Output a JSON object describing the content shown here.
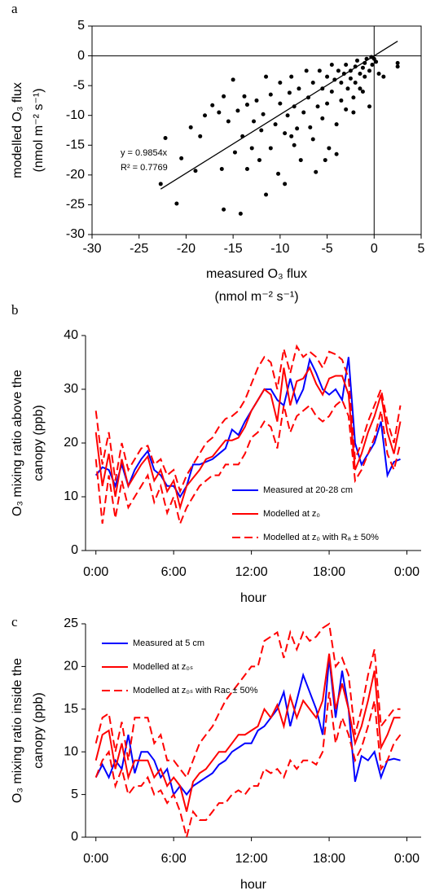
{
  "chart_data": [
    {
      "type": "scatter",
      "label": "a",
      "ylabel": [
        "modelled O₃ flux",
        "(nmol m⁻² s⁻¹)"
      ],
      "xlabel": [
        "measured O₃ flux",
        "(nmol m⁻² s⁻¹)"
      ],
      "xlim": [
        -30,
        5
      ],
      "ylim": [
        -30,
        5
      ],
      "xticks": [
        -30,
        -25,
        -20,
        -15,
        -10,
        -5,
        0,
        5
      ],
      "yticks": [
        -30,
        -25,
        -20,
        -15,
        -10,
        -5,
        0,
        5
      ],
      "color": "#000000",
      "x": [
        -22.7,
        -22.2,
        -21,
        -20.5,
        -19.5,
        -19,
        -18.5,
        -18,
        -17.2,
        -16.5,
        -16,
        -16.2,
        -16,
        -15.5,
        -15,
        -14.8,
        -14.5,
        -14.2,
        -14,
        -13.8,
        -13.5,
        -13.5,
        -13,
        -12.8,
        -12.5,
        -12.2,
        -12,
        -11.8,
        -11.5,
        -11.5,
        -11,
        -11,
        -10.5,
        -10.2,
        -10,
        -10,
        -9.5,
        -9.5,
        -9.2,
        -9,
        -8.8,
        -8.5,
        -8.5,
        -8.2,
        -8,
        -7.8,
        -7.5,
        -7.2,
        -7,
        -6.8,
        -6.5,
        -6.2,
        -6,
        -5.8,
        -5.5,
        -5.5,
        -5.2,
        -5,
        -5,
        -4.8,
        -4.5,
        -4.5,
        -4.2,
        -4,
        -3.8,
        -3.5,
        -3.5,
        -3.2,
        -3,
        -3,
        -2.8,
        -2.5,
        -2.5,
        -2.2,
        -2,
        -2,
        -1.8,
        -1.5,
        -1.5,
        -1.2,
        -1,
        -1,
        -0.8,
        -0.5,
        -0.5,
        -0.3,
        -0.2,
        0,
        0.2,
        0.5,
        1,
        2.5,
        2.5,
        -1.2,
        -6.5,
        -8.8,
        -4,
        -2.2
      ],
      "values": [
        -21.5,
        -13.8,
        -24.8,
        -17.2,
        -12,
        -19.3,
        -13.5,
        -10,
        -8.3,
        -9.5,
        -25.8,
        -19,
        -6.8,
        -11,
        -4,
        -16.2,
        -9.2,
        -26.5,
        -13.5,
        -6.8,
        -19,
        -8.2,
        -15.5,
        -11,
        -7.5,
        -17.5,
        -12.5,
        -9.8,
        -3.5,
        -23.3,
        -15.5,
        -6.5,
        -11.5,
        -19.8,
        -8,
        -4.5,
        -13,
        -21.5,
        -10,
        -6.2,
        -3.5,
        -15,
        -8.5,
        -12.2,
        -5.5,
        -17.5,
        -9.5,
        -2.5,
        -7,
        -12,
        -4.5,
        -19.5,
        -8.5,
        -2.5,
        -10.5,
        -5.5,
        -17.5,
        -3.5,
        -8,
        -15.5,
        -1.5,
        -6,
        -4,
        -11.5,
        -2.5,
        -7.5,
        -4.5,
        -3,
        -9,
        -1.5,
        -5.5,
        -2.5,
        -3.8,
        -7,
        -1.8,
        -4.5,
        -0.8,
        -3,
        -5.5,
        -2,
        -1.2,
        -3.5,
        -0.5,
        -2.5,
        -8.5,
        -0.2,
        -1.5,
        -0.5,
        -1,
        -3,
        -3.5,
        -1.2,
        -1.8,
        -6,
        -14,
        -13.5,
        -16.5,
        -9.5
      ],
      "fit": {
        "slope": 0.9854,
        "equation": "y = 0.9854x",
        "r2": "R² = 0.7769"
      }
    },
    {
      "type": "line",
      "label": "b",
      "ylabel": [
        "O₃ mixing ratio above the",
        "canopy (ppb)"
      ],
      "xlabel": [
        "hour"
      ],
      "xlim": [
        -0.8,
        25.1
      ],
      "ylim": [
        0,
        40
      ],
      "xticks": [
        {
          "value": 0,
          "label": "0:00"
        },
        {
          "value": 6,
          "label": "6:00"
        },
        {
          "value": 12,
          "label": "12:00"
        },
        {
          "value": 18,
          "label": "18:00"
        },
        {
          "value": 24,
          "label": "0:00"
        }
      ],
      "yticks": [
        0,
        10,
        20,
        30,
        40
      ],
      "legend": "lower right",
      "x": [
        0,
        0.5,
        1,
        1.5,
        2,
        2.5,
        3,
        3.5,
        4,
        4.5,
        5,
        5.5,
        6,
        6.5,
        7,
        7.5,
        8,
        8.5,
        9,
        9.5,
        10,
        10.5,
        11,
        11.5,
        12,
        12.5,
        13,
        13.5,
        14,
        14.5,
        15,
        15.5,
        16,
        16.5,
        17,
        17.5,
        18,
        18.5,
        19,
        19.5,
        20,
        20.5,
        21,
        21.5,
        22,
        22.5,
        23,
        23.5
      ],
      "series": [
        {
          "name": "Measured at 20-28 cm",
          "color": "#0000ff",
          "style": "solid",
          "values": [
            14,
            15.5,
            15,
            12,
            16,
            12,
            15,
            17,
            18.5,
            15,
            14,
            12,
            12,
            10,
            12,
            16,
            16,
            16.5,
            17,
            18,
            19,
            22.5,
            21.5,
            24,
            26,
            28,
            30,
            30,
            28,
            27,
            32,
            27.5,
            30,
            35.5,
            33,
            30,
            29,
            30,
            28,
            36,
            20,
            16,
            18,
            20,
            24,
            14,
            16.5,
            17
          ]
        },
        {
          "name": "Modelled at z₀",
          "color": "#ff0000",
          "style": "solid",
          "values": [
            22,
            12,
            18,
            10,
            17,
            12,
            14,
            16,
            17.5,
            13,
            15,
            11,
            13,
            8,
            12,
            13.5,
            15,
            17,
            17.5,
            19,
            20.5,
            20.5,
            21,
            23,
            26,
            28,
            30,
            29,
            24,
            34,
            27,
            31.5,
            32,
            34,
            31,
            29,
            32,
            32.5,
            32.5,
            29,
            15,
            18,
            22,
            25,
            29,
            22,
            18,
            24
          ]
        },
        {
          "name": "Modelled at z₀ with Rₐ ± 50%",
          "color": "#ff0000",
          "style": "dashed",
          "upper": [
            26,
            16,
            22,
            13,
            20,
            15,
            17,
            19,
            19.5,
            16,
            17,
            14,
            15,
            11,
            14,
            16,
            18,
            20,
            21,
            23,
            24.5,
            25,
            26,
            28,
            31,
            34,
            36,
            35,
            30,
            37.5,
            33,
            38,
            36,
            37,
            36,
            34,
            37,
            36.5,
            35.5,
            32,
            17,
            20,
            24,
            27,
            30,
            24,
            20,
            27
          ],
          "lower": [
            17,
            5,
            14,
            6,
            13,
            8,
            10,
            12,
            14,
            9,
            12,
            7,
            10,
            5,
            8,
            10,
            12,
            13,
            14,
            14,
            16,
            16,
            16,
            18,
            21,
            22,
            24,
            23,
            19,
            27,
            22,
            25,
            26,
            27,
            25,
            24,
            25,
            27,
            28,
            25,
            13,
            15,
            18,
            21,
            26,
            18,
            15,
            20
          ]
        }
      ]
    },
    {
      "type": "line",
      "label": "c",
      "ylabel": [
        "O₃ mixing ratio inside the",
        "canopy (ppb)"
      ],
      "xlabel": [
        "hour"
      ],
      "xlim": [
        -0.8,
        25.1
      ],
      "ylim": [
        0,
        25
      ],
      "xticks": [
        {
          "value": 0,
          "label": "0:00"
        },
        {
          "value": 6,
          "label": "6:00"
        },
        {
          "value": 12,
          "label": "12:00"
        },
        {
          "value": 18,
          "label": "18:00"
        },
        {
          "value": 24,
          "label": "0:00"
        }
      ],
      "yticks": [
        0,
        5,
        10,
        15,
        20,
        25
      ],
      "legend": "upper left",
      "x": [
        0,
        0.5,
        1,
        1.5,
        2,
        2.5,
        3,
        3.5,
        4,
        4.5,
        5,
        5.5,
        6,
        6.5,
        7,
        7.5,
        8,
        8.5,
        9,
        9.5,
        10,
        10.5,
        11,
        11.5,
        12,
        12.5,
        13,
        13.5,
        14,
        14.5,
        15,
        15.5,
        16,
        16.5,
        17,
        17.5,
        18,
        18.5,
        19,
        19.5,
        20,
        20.5,
        21,
        21.5,
        22,
        22.5,
        23,
        23.5
      ],
      "series": [
        {
          "name": "Measured at 5 cm",
          "color": "#0000ff",
          "style": "solid",
          "values": [
            7,
            8.5,
            7,
            9,
            8,
            12,
            7.5,
            10,
            10,
            9,
            7,
            8,
            5,
            6,
            5,
            6,
            6.5,
            7,
            7.5,
            8.5,
            9,
            10,
            10.5,
            11,
            11,
            12.5,
            13,
            14,
            15,
            17,
            13,
            16,
            19,
            17,
            15,
            12,
            21,
            14,
            19.5,
            15,
            6.5,
            9.5,
            9,
            10,
            7,
            9,
            9.2,
            9
          ]
        },
        {
          "name": "Modelled at z₀ₛ",
          "color": "#ff0000",
          "style": "solid",
          "values": [
            9,
            12,
            12.5,
            8,
            11,
            7,
            9,
            9,
            9,
            7,
            8,
            6,
            7,
            6,
            3,
            6.5,
            7.5,
            8,
            9,
            10,
            10,
            11,
            12,
            12,
            12.5,
            13,
            15,
            14,
            15.5,
            13,
            16.5,
            14,
            16,
            15,
            14,
            16,
            21.5,
            15,
            18,
            15,
            11,
            13,
            16,
            19.5,
            10.5,
            12,
            14,
            14
          ]
        },
        {
          "name": "Modelled at z₀ₛ with Rac ± 50%",
          "color": "#ff0000",
          "style": "dashed",
          "upper": [
            11,
            14,
            14.5,
            10,
            13.5,
            9,
            14,
            14,
            14,
            11,
            12,
            9,
            9,
            8,
            7,
            9,
            11,
            12,
            13,
            14.5,
            16,
            17,
            18,
            19,
            20,
            20,
            23,
            23.5,
            24,
            21,
            24,
            22,
            24,
            23,
            23.5,
            24.5,
            25,
            20,
            21,
            19,
            12,
            15,
            19,
            22,
            13,
            14,
            15,
            15
          ],
          "lower": [
            7,
            9,
            10,
            6,
            8,
            5,
            6,
            6,
            7,
            5,
            5.5,
            4,
            5,
            3,
            0,
            3,
            2,
            2,
            3,
            4,
            4,
            5,
            5.5,
            5,
            6,
            6,
            8,
            7.5,
            8,
            7,
            9,
            8,
            9,
            9,
            8.5,
            10,
            17,
            11,
            14,
            12,
            9,
            10.5,
            13,
            16,
            8,
            9,
            11,
            12
          ]
        }
      ]
    }
  ]
}
